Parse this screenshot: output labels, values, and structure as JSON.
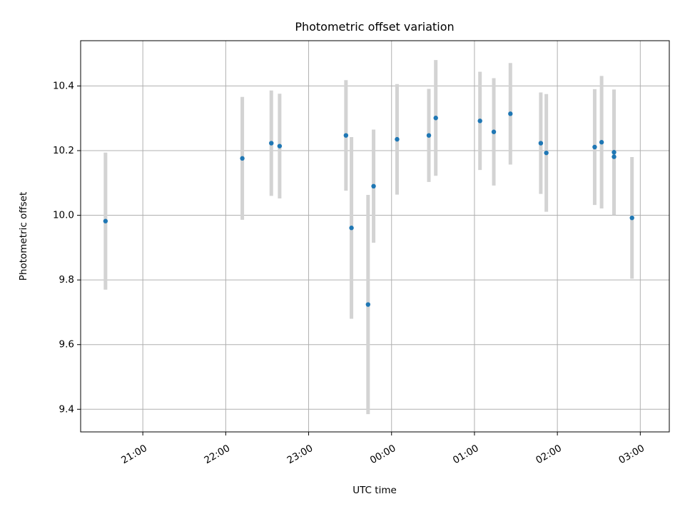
{
  "chart_data": {
    "type": "scatter",
    "title": "Photometric offset variation",
    "xlabel": "UTC time",
    "ylabel": "Photometric offset",
    "x_axis": {
      "kind": "time",
      "range": [
        "20:15",
        "03:21"
      ],
      "ticks": [
        "21:00",
        "22:00",
        "23:00",
        "00:00",
        "01:00",
        "02:00",
        "03:00"
      ]
    },
    "y_axis": {
      "range": [
        9.33,
        10.54
      ],
      "ticks": [
        "9.4",
        "9.6",
        "9.8",
        "10.0",
        "10.2",
        "10.4"
      ]
    },
    "grid": true,
    "point_color": "#1f77b4",
    "errorbar_color": "#d3d3d3",
    "points": [
      {
        "time": "20:33",
        "y": 9.982,
        "err": 0.212
      },
      {
        "time": "22:12",
        "y": 10.176,
        "err": 0.19
      },
      {
        "time": "22:33",
        "y": 10.223,
        "err": 0.163
      },
      {
        "time": "22:39",
        "y": 10.214,
        "err": 0.162
      },
      {
        "time": "23:27",
        "y": 10.247,
        "err": 0.171
      },
      {
        "time": "23:31",
        "y": 9.961,
        "err": 0.281
      },
      {
        "time": "23:43",
        "y": 9.724,
        "err": 0.339
      },
      {
        "time": "23:47",
        "y": 10.09,
        "err": 0.175
      },
      {
        "time": "00:04",
        "y": 10.235,
        "err": 0.171
      },
      {
        "time": "00:27",
        "y": 10.247,
        "err": 0.144
      },
      {
        "time": "00:32",
        "y": 10.301,
        "err": 0.179
      },
      {
        "time": "01:04",
        "y": 10.292,
        "err": 0.152
      },
      {
        "time": "01:14",
        "y": 10.258,
        "err": 0.166
      },
      {
        "time": "01:26",
        "y": 10.314,
        "err": 0.157
      },
      {
        "time": "01:48",
        "y": 10.223,
        "err": 0.157
      },
      {
        "time": "01:52",
        "y": 10.193,
        "err": 0.182
      },
      {
        "time": "02:27",
        "y": 10.211,
        "err": 0.179
      },
      {
        "time": "02:32",
        "y": 10.226,
        "err": 0.205
      },
      {
        "time": "02:41",
        "y": 10.195,
        "err": 0.194
      },
      {
        "time": "02:41",
        "y": 10.181,
        "err": 0.18
      },
      {
        "time": "02:54",
        "y": 9.992,
        "err": 0.188
      }
    ]
  }
}
